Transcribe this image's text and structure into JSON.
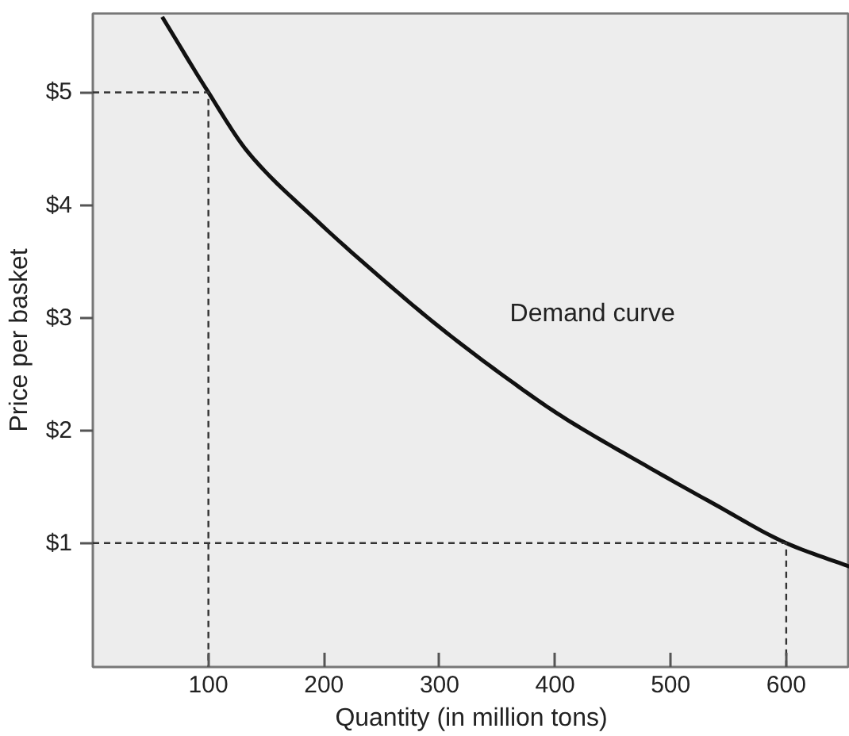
{
  "chart_data": {
    "type": "line",
    "xlabel": "Quantity (in million tons)",
    "ylabel": "Price per basket",
    "xlim": [
      0,
      655
    ],
    "ylim": [
      -0.1,
      5.7
    ],
    "xticks": [
      100,
      200,
      300,
      400,
      500,
      600
    ],
    "yticks": [
      {
        "value": 1,
        "label": "$1"
      },
      {
        "value": 2,
        "label": "$2"
      },
      {
        "value": 3,
        "label": "$3"
      },
      {
        "value": 4,
        "label": "$4"
      },
      {
        "value": 5,
        "label": "$5"
      }
    ],
    "grid": false,
    "marker": "none",
    "series": [
      {
        "color": "#111111",
        "line_style": "solid",
        "x": [
          60,
          100,
          135,
          194,
          253,
          302,
          356,
          405,
          478,
          537,
          600,
          655
        ],
        "values": [
          5.67,
          5,
          4.46,
          3.86,
          3.32,
          2.9,
          2.48,
          2.13,
          1.69,
          1.35,
          1,
          0.79
        ]
      },
      {
        "color": "#333333",
        "line_style": "dashed",
        "x": [
          0,
          100,
          100
        ],
        "values": [
          5,
          5,
          -0.1
        ]
      },
      {
        "color": "#333333",
        "line_style": "dashed",
        "x": [
          0,
          600,
          600
        ],
        "values": [
          1,
          1,
          -0.1
        ]
      }
    ],
    "annotations": [
      "Demand curve"
    ]
  }
}
